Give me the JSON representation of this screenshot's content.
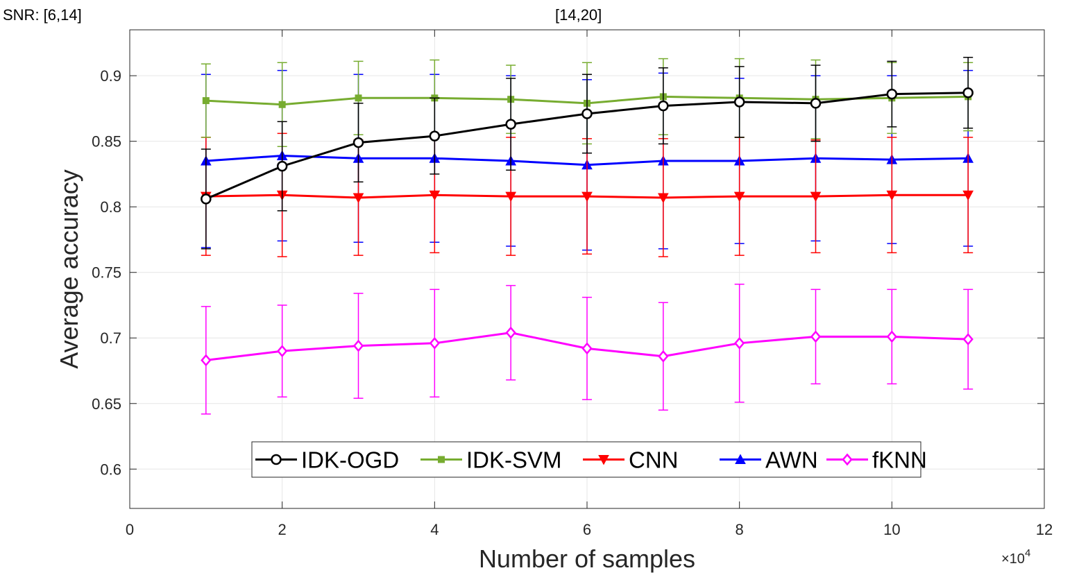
{
  "chart_data": {
    "type": "line",
    "title_left": "SNR: [6,14]",
    "title_center": "[14,20]",
    "xlabel": "Number of samples",
    "ylabel": "Average accuracy",
    "x_exponent_label": "×10",
    "x_exponent_power": "4",
    "xlim": [
      0,
      12
    ],
    "ylim": [
      0.57,
      0.935
    ],
    "xticks": [
      0,
      2,
      4,
      6,
      8,
      10,
      12
    ],
    "xtick_labels": [
      "0",
      "2",
      "4",
      "6",
      "8",
      "10",
      "12"
    ],
    "yticks": [
      0.6,
      0.65,
      0.7,
      0.75,
      0.8,
      0.85,
      0.9
    ],
    "ytick_labels": [
      "0.6",
      "0.65",
      "0.7",
      "0.75",
      "0.8",
      "0.85",
      "0.9"
    ],
    "grid": true,
    "legend_position": "bottom-center",
    "x": [
      1,
      2,
      3,
      4,
      5,
      6,
      7,
      8,
      9,
      10,
      11
    ],
    "series": [
      {
        "name": "IDK-OGD",
        "color": "#000000",
        "marker": "circle",
        "values": [
          0.806,
          0.831,
          0.849,
          0.854,
          0.863,
          0.871,
          0.877,
          0.88,
          0.879,
          0.886,
          0.887
        ],
        "err": [
          0.038,
          0.034,
          0.03,
          0.029,
          0.035,
          0.03,
          0.029,
          0.027,
          0.029,
          0.025,
          0.027
        ]
      },
      {
        "name": "IDK-SVM",
        "color": "#77ac30",
        "marker": "square",
        "values": [
          0.881,
          0.878,
          0.883,
          0.883,
          0.882,
          0.879,
          0.884,
          0.883,
          0.882,
          0.883,
          0.884
        ],
        "err": [
          0.028,
          0.032,
          0.028,
          0.029,
          0.026,
          0.031,
          0.029,
          0.03,
          0.03,
          0.027,
          0.026
        ]
      },
      {
        "name": "CNN",
        "color": "#ff0000",
        "marker": "triangle-down",
        "values": [
          0.808,
          0.809,
          0.807,
          0.809,
          0.808,
          0.808,
          0.807,
          0.808,
          0.808,
          0.809,
          0.809
        ],
        "err": [
          0.045,
          0.047,
          0.044,
          0.044,
          0.045,
          0.044,
          0.045,
          0.045,
          0.043,
          0.044,
          0.044
        ]
      },
      {
        "name": "AWN",
        "color": "#0000ff",
        "marker": "triangle-up",
        "values": [
          0.835,
          0.839,
          0.837,
          0.837,
          0.835,
          0.832,
          0.835,
          0.835,
          0.837,
          0.836,
          0.837
        ],
        "err": [
          0.066,
          0.065,
          0.064,
          0.064,
          0.065,
          0.065,
          0.067,
          0.063,
          0.063,
          0.064,
          0.067
        ]
      },
      {
        "name": "fKNN",
        "color": "#ff00ff",
        "marker": "diamond",
        "values": [
          0.683,
          0.69,
          0.694,
          0.696,
          0.704,
          0.692,
          0.686,
          0.696,
          0.701,
          0.701,
          0.699
        ],
        "err": [
          0.041,
          0.035,
          0.04,
          0.041,
          0.036,
          0.039,
          0.041,
          0.045,
          0.036,
          0.036,
          0.038
        ]
      }
    ]
  }
}
